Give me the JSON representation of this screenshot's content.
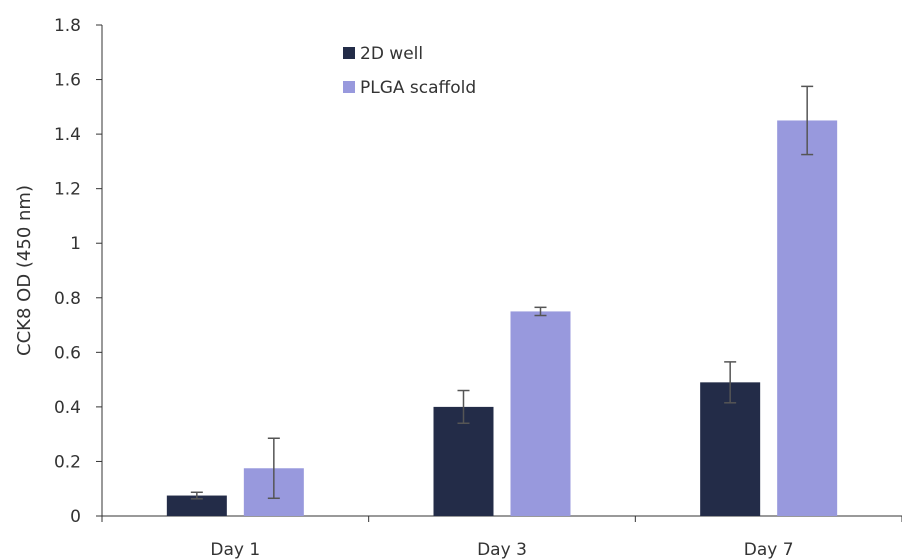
{
  "chart_data": {
    "type": "bar",
    "title": "",
    "xlabel": "",
    "ylabel": "CCK8 OD (450 nm)",
    "ylim": [
      0,
      1.8
    ],
    "ytick_step": 0.2,
    "ytick_labels": [
      "0",
      "0.2",
      "0.4",
      "0.6",
      "0.8",
      "1",
      "1.2",
      "1.4",
      "1.6",
      "1.8"
    ],
    "categories": [
      "Day 1",
      "Day 3",
      "Day 7"
    ],
    "grid": false,
    "legend_position": "top-center",
    "series": [
      {
        "name": "2D well",
        "color": "#232c48",
        "values": [
          0.075,
          0.4,
          0.49
        ],
        "errors": [
          0.012,
          0.06,
          0.075
        ]
      },
      {
        "name": "PLGA scaffold",
        "color": "#9899dd",
        "values": [
          0.175,
          0.75,
          1.45
        ],
        "errors": [
          0.11,
          0.015,
          0.125
        ]
      }
    ]
  }
}
